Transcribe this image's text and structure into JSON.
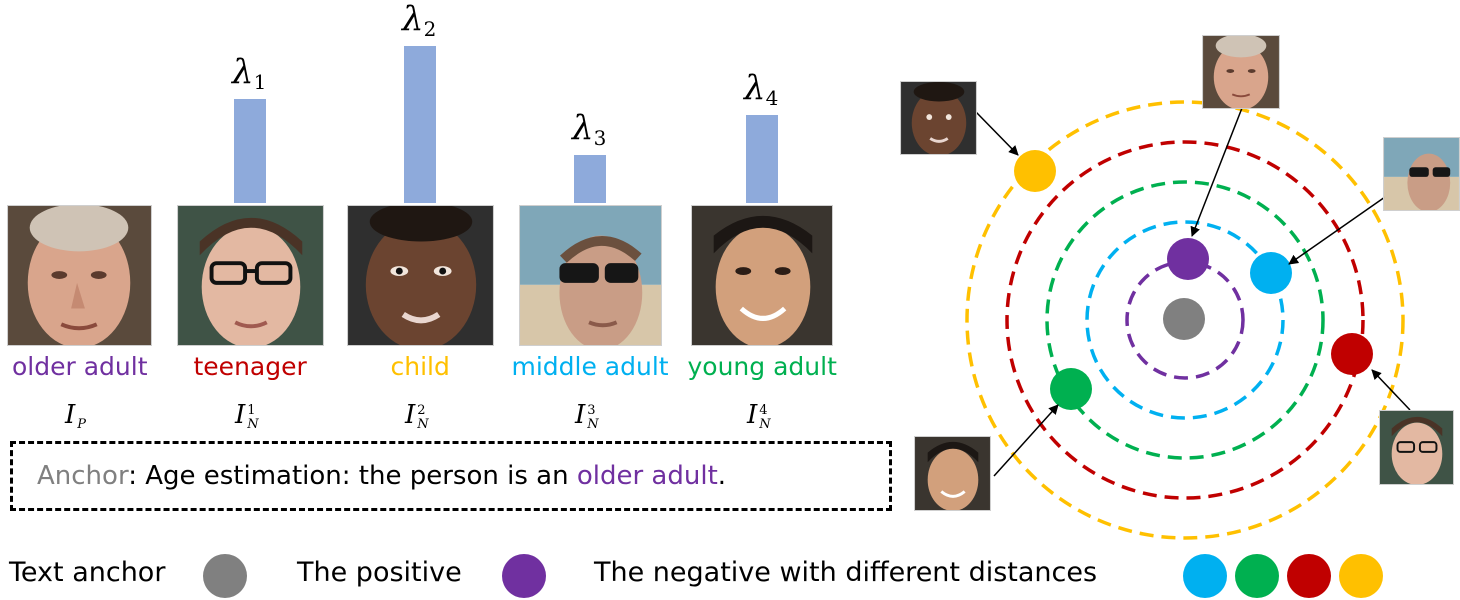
{
  "colors": {
    "older_adult": "#7030a0",
    "teenager": "#c00000",
    "child": "#ffc000",
    "middle_adult": "#00b0f0",
    "young_adult": "#00b050",
    "anchor_gray": "#808080",
    "bar": "#8eaadb"
  },
  "samples": [
    {
      "category": "older adult",
      "symbol": "I",
      "sup": "",
      "sub": "P",
      "lambda": null,
      "weight": null,
      "color_key": "older_adult",
      "face_icon": "older-man-face"
    },
    {
      "category": "teenager",
      "symbol": "I",
      "sup": "1",
      "sub": "N",
      "lambda": "λ",
      "lambda_sub": "1",
      "weight": 0.65,
      "color_key": "teenager",
      "face_icon": "teen-glasses-face"
    },
    {
      "category": "child",
      "symbol": "I",
      "sup": "2",
      "sub": "N",
      "lambda": "λ",
      "lambda_sub": "2",
      "weight": 0.98,
      "color_key": "child",
      "face_icon": "child-face"
    },
    {
      "category": "middle adult",
      "symbol": "I",
      "sup": "3",
      "sub": "N",
      "lambda": "λ",
      "lambda_sub": "3",
      "weight": 0.3,
      "color_key": "middle_adult",
      "face_icon": "sunglasses-man-face"
    },
    {
      "category": "young adult",
      "symbol": "I",
      "sup": "4",
      "sub": "N",
      "lambda": "λ",
      "lambda_sub": "4",
      "weight": 0.55,
      "color_key": "young_adult",
      "face_icon": "young-man-face"
    }
  ],
  "anchor": {
    "label": "Anchor",
    "text": ": Age estimation: the person is an ",
    "category": "older adult",
    "end": "."
  },
  "legend": {
    "text_anchor": "Text anchor",
    "positive": "The positive",
    "negatives": "The negative with different distances"
  },
  "rings": [
    {
      "color_key": "older_adult"
    },
    {
      "color_key": "middle_adult"
    },
    {
      "color_key": "young_adult"
    },
    {
      "color_key": "teenager"
    },
    {
      "color_key": "child"
    }
  ]
}
